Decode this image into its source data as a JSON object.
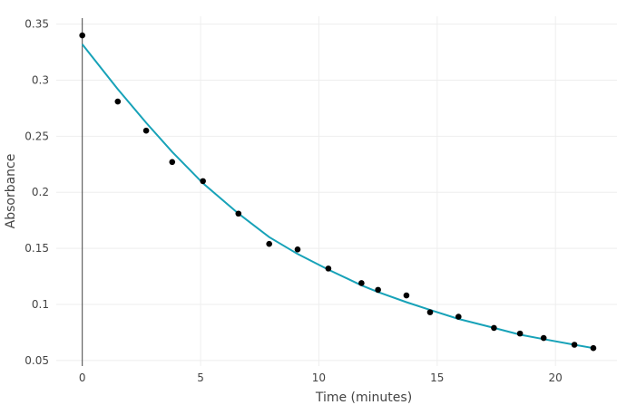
{
  "chart_data": {
    "type": "scatter",
    "title": "",
    "xlabel": "Time (minutes)",
    "ylabel": "Absorbance",
    "xlim": [
      -1.1,
      22.6
    ],
    "ylim": [
      0.045,
      0.357
    ],
    "x_ticks": [
      0,
      5,
      10,
      15,
      20
    ],
    "x_tick_labels": [
      "0",
      "5",
      "10",
      "15",
      "20"
    ],
    "y_ticks": [
      0.05,
      0.1,
      0.15,
      0.2,
      0.25,
      0.3,
      0.35
    ],
    "y_tick_labels": [
      "0.05",
      "0.1",
      "0.15",
      "0.2",
      "0.25",
      "0.3",
      "0.35"
    ],
    "grid": true,
    "legend": false,
    "series": [
      {
        "type": "scatter",
        "color": "#000000",
        "x": [
          0,
          1.5,
          2.7,
          3.8,
          5.1,
          6.6,
          7.9,
          9.1,
          10.4,
          11.8,
          12.5,
          13.7,
          14.7,
          15.9,
          17.4,
          18.5,
          19.5,
          20.8,
          21.6
        ],
        "y": [
          0.34,
          0.281,
          0.255,
          0.227,
          0.21,
          0.181,
          0.154,
          0.149,
          0.132,
          0.119,
          0.113,
          0.108,
          0.093,
          0.089,
          0.079,
          0.074,
          0.07,
          0.064,
          0.061
        ]
      },
      {
        "type": "line",
        "color": "#17a2b8",
        "x": [
          0,
          1.5,
          2.7,
          3.8,
          5.1,
          6.6,
          7.9,
          9.1,
          10.4,
          11.8,
          12.5,
          13.7,
          14.7,
          15.9,
          17.4,
          18.5,
          19.5,
          20.8,
          21.6
        ],
        "y": [
          0.332,
          0.292,
          0.262,
          0.236,
          0.208,
          0.181,
          0.16,
          0.145,
          0.131,
          0.117,
          0.111,
          0.102,
          0.095,
          0.087,
          0.079,
          0.073,
          0.069,
          0.064,
          0.061
        ]
      }
    ]
  }
}
